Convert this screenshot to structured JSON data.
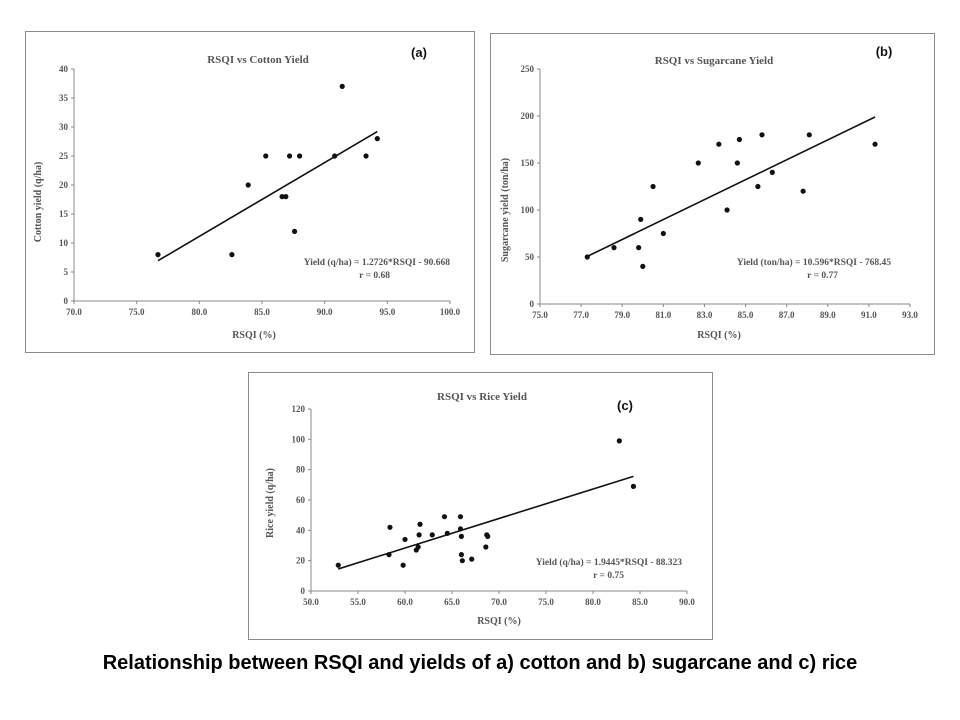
{
  "caption": "Relationship between RSQI and yields of a) cotton and b) sugarcane and c) rice",
  "colors": {
    "points": "#111111",
    "trend": "#111111",
    "axis": "#888888",
    "text": "#555555",
    "frame": "#8c8c8c"
  },
  "chart_data": [
    {
      "type": "scatter",
      "panel_label": "(a)",
      "title": "RSQI vs Cotton Yield",
      "xlabel": "RSQI (%)",
      "ylabel": "Cotton yield (q/ha)",
      "xlim": [
        70,
        100
      ],
      "ylim": [
        0,
        40
      ],
      "xticks": [
        "70.0",
        "75.0",
        "80.0",
        "85.0",
        "90.0",
        "95.0",
        "100.0"
      ],
      "yticks": [
        "0",
        "5",
        "10",
        "15",
        "20",
        "25",
        "30",
        "35",
        "40"
      ],
      "x": [
        76.7,
        82.6,
        83.9,
        85.3,
        86.6,
        86.9,
        87.2,
        87.6,
        88.0,
        90.8,
        91.4,
        93.3,
        94.2
      ],
      "y": [
        8,
        8,
        20,
        25,
        18,
        18,
        25,
        12,
        25,
        25,
        37,
        25,
        28
      ],
      "trendline": {
        "slope": 1.2726,
        "intercept": -90.668
      },
      "equation": "Yield (q/ha) = 1.2726*RSQI - 90.668",
      "r_text": "r = 0.68",
      "grid": false
    },
    {
      "type": "scatter",
      "panel_label": "(b)",
      "title": "RSQI vs Sugarcane Yield",
      "xlabel": "RSQI (%)",
      "ylabel": "Sugarcane yield (ton/ha)",
      "xlim": [
        75,
        93
      ],
      "ylim": [
        0,
        250
      ],
      "xticks": [
        "75.0",
        "77.0",
        "79.0",
        "81.0",
        "83.0",
        "85.0",
        "87.0",
        "89.0",
        "91.0",
        "93.0"
      ],
      "yticks": [
        "0",
        "50",
        "100",
        "150",
        "200",
        "250"
      ],
      "x": [
        77.3,
        78.6,
        79.8,
        79.9,
        80.0,
        80.5,
        81.0,
        82.7,
        83.7,
        84.1,
        84.6,
        84.7,
        85.6,
        85.8,
        86.3,
        87.8,
        88.1,
        91.3
      ],
      "y": [
        50,
        60,
        60,
        90,
        40,
        125,
        75,
        150,
        170,
        100,
        150,
        175,
        125,
        180,
        140,
        120,
        180,
        170
      ],
      "trendline": {
        "slope": 10.596,
        "intercept": -768.45
      },
      "equation": "Yield (ton/ha) = 10.596*RSQI - 768.45",
      "r_text": "r = 0.77",
      "grid": false
    },
    {
      "type": "scatter",
      "panel_label": "(c)",
      "title": "RSQI vs Rice Yield",
      "xlabel": "RSQI (%)",
      "ylabel": "Rice yield (q/ha)",
      "xlim": [
        50,
        90
      ],
      "ylim": [
        0,
        120
      ],
      "xticks": [
        "50.0",
        "55.0",
        "60.0",
        "65.0",
        "70.0",
        "75.0",
        "80.0",
        "85.0",
        "90.0"
      ],
      "yticks": [
        "0",
        "20",
        "40",
        "60",
        "80",
        "100",
        "120"
      ],
      "x": [
        52.9,
        58.3,
        58.4,
        59.8,
        60.0,
        61.2,
        61.4,
        61.5,
        61.6,
        62.9,
        64.2,
        64.5,
        65.9,
        65.9,
        66.0,
        66.0,
        66.1,
        67.1,
        68.6,
        68.7,
        68.8,
        82.8,
        84.3
      ],
      "y": [
        17,
        24,
        42,
        17,
        34,
        27,
        29,
        37,
        44,
        37,
        49,
        38,
        41,
        49,
        36,
        24,
        20,
        21,
        29,
        37,
        36,
        99,
        69
      ],
      "trendline": {
        "slope": 1.9445,
        "intercept": -88.323
      },
      "equation": "Yield (q/ha) = 1.9445*RSQI - 88.323",
      "r_text": "r = 0.75",
      "grid": false
    }
  ]
}
